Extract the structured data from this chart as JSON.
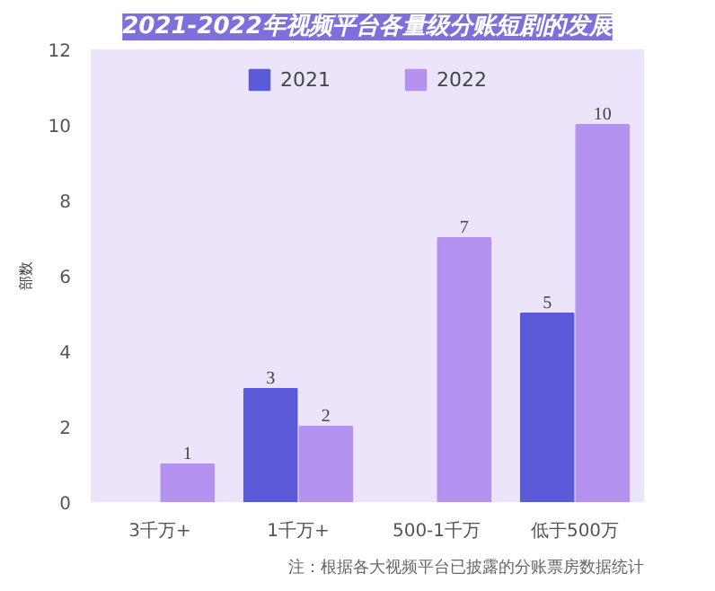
{
  "chart_data": {
    "type": "bar",
    "title": "2021-2022年视频平台各量级分账短剧的发展",
    "ylabel": "部数",
    "categories": [
      "3千万+",
      "1千万+",
      "500-1千万",
      "低于500万"
    ],
    "series": [
      {
        "name": "2021",
        "color": "#5b5bd9",
        "values": [
          null,
          3,
          null,
          5
        ]
      },
      {
        "name": "2022",
        "color": "#b591f0",
        "values": [
          1,
          2,
          7,
          10
        ]
      }
    ],
    "ylim": [
      0,
      12
    ],
    "yticks": [
      0,
      2,
      4,
      6,
      8,
      10,
      12
    ],
    "grid": false,
    "legend": "top",
    "data_labels": true,
    "annotations": [
      "注：根据各大视频平台已披露的分账票房数据统计"
    ]
  }
}
